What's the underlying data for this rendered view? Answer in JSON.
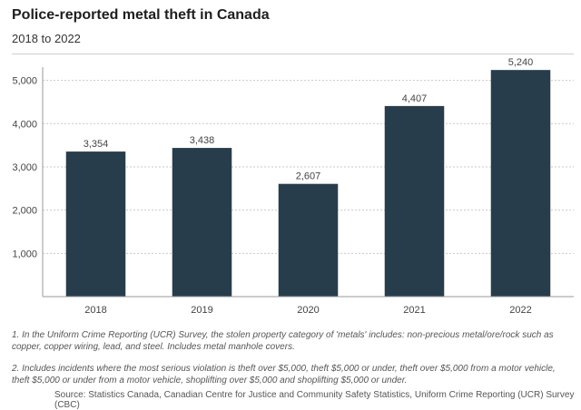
{
  "chart_data": {
    "type": "bar",
    "title": "Police-reported metal theft in Canada",
    "subtitle": "2018 to 2022",
    "categories": [
      "2018",
      "2019",
      "2020",
      "2021",
      "2022"
    ],
    "values": [
      3354,
      3438,
      2607,
      4407,
      5240
    ],
    "value_labels": [
      "3,354",
      "3,438",
      "2,607",
      "4,407",
      "5,240"
    ],
    "ylim": [
      0,
      5600
    ],
    "yticks": [
      1000,
      2000,
      3000,
      4000,
      5000
    ],
    "ytick_labels": [
      "1,000",
      "2,000",
      "3,000",
      "4,000",
      "5,000"
    ],
    "xlabel": "",
    "ylabel": "",
    "grid": true,
    "bar_color": "#283d4b"
  },
  "notes": {
    "note1": "1. In the Uniform Crime Reporting (UCR) Survey, the stolen property category of 'metals' includes: non-precious metal/ore/rock such as copper, copper wiring, lead, and steel. Includes metal manhole covers.",
    "note2": "2. Includes incidents where the most serious violation is theft over $5,000, theft $5,000 or under, theft over $5,000 from a motor vehicle, theft $5,000 or under from a motor vehicle, shoplifting over $5,000 and shoplifting $5,000 or under."
  },
  "source": "Source: Statistics Canada, Canadian Centre for Justice and Community Safety Statistics, Uniform Crime Reporting (UCR) Survey (CBC)"
}
